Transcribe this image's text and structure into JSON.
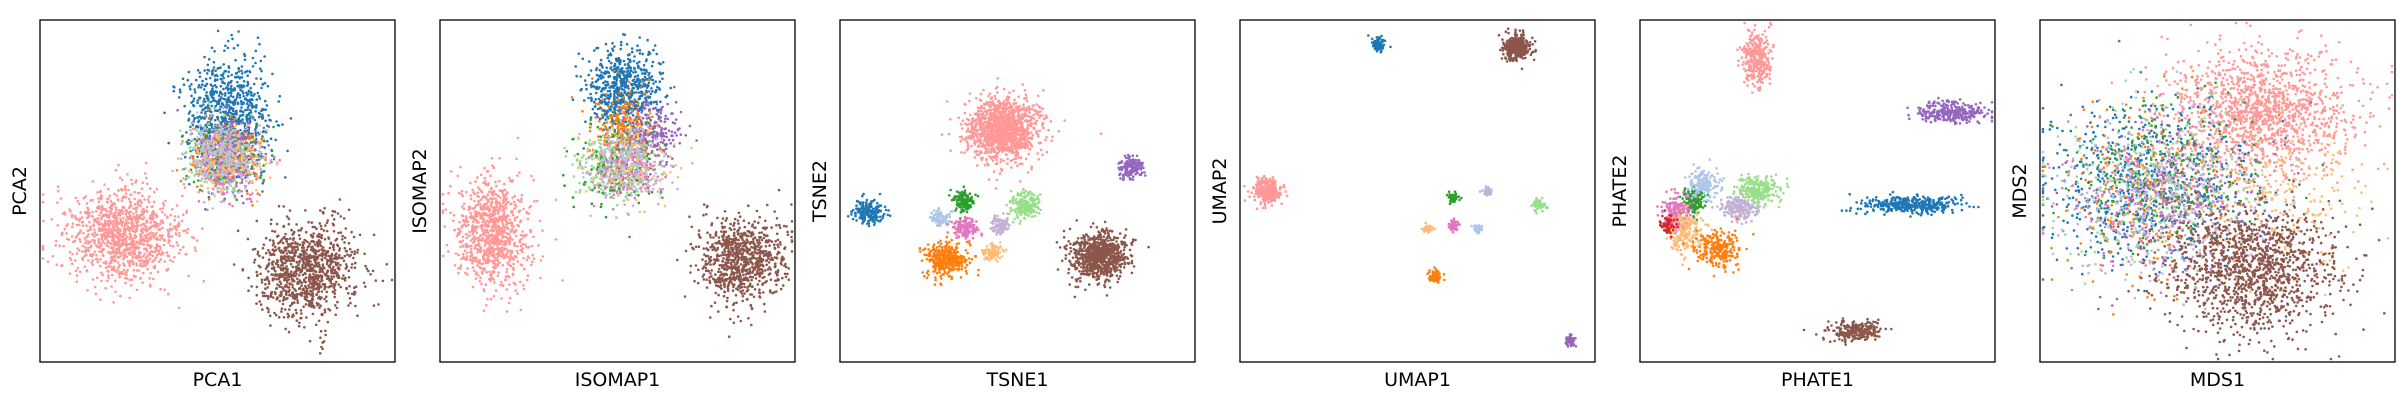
{
  "colors": {
    "blue": "#1f77b4",
    "orange": "#ff7f0e",
    "green": "#2ca02c",
    "light_green": "#98df8a",
    "purple": "#9467bd",
    "light_purple": "#c5b0d5",
    "brown": "#8c564b",
    "pink": "#e377c2",
    "light_pink": "#ff9896",
    "light_orange": "#ffbb78",
    "light_blue": "#aec7e8",
    "red": "#d62728"
  },
  "chart_data": [
    {
      "type": "scatter",
      "xlabel": "PCA1",
      "ylabel": "PCA2",
      "xlim": [
        0,
        100
      ],
      "ylim": [
        0,
        100
      ],
      "clusters": [
        {
          "color": "light_pink",
          "cx": 23,
          "cy": 37,
          "sx": 8,
          "sy": 7,
          "n": 1100
        },
        {
          "color": "brown",
          "cx": 75,
          "cy": 27,
          "sx": 7,
          "sy": 7,
          "n": 1000
        },
        {
          "color": "blue",
          "cx": 53,
          "cy": 72,
          "sx": 6,
          "sy": 8,
          "n": 800
        },
        {
          "color": "orange",
          "cx": 52,
          "cy": 60,
          "sx": 5,
          "sy": 5,
          "n": 260
        },
        {
          "color": "green",
          "cx": 53,
          "cy": 60,
          "sx": 5,
          "sy": 5,
          "n": 180
        },
        {
          "color": "light_green",
          "cx": 50,
          "cy": 60,
          "sx": 5,
          "sy": 5,
          "n": 180
        },
        {
          "color": "purple",
          "cx": 55,
          "cy": 62,
          "sx": 5,
          "sy": 5,
          "n": 160
        },
        {
          "color": "light_purple",
          "cx": 51,
          "cy": 58,
          "sx": 5,
          "sy": 5,
          "n": 160
        },
        {
          "color": "pink",
          "cx": 52,
          "cy": 57,
          "sx": 5,
          "sy": 5,
          "n": 130
        },
        {
          "color": "light_orange",
          "cx": 54,
          "cy": 59,
          "sx": 5,
          "sy": 5,
          "n": 130
        },
        {
          "color": "light_blue",
          "cx": 51,
          "cy": 61,
          "sx": 5,
          "sy": 5,
          "n": 130
        }
      ]
    },
    {
      "type": "scatter",
      "xlabel": "ISOMAP1",
      "ylabel": "ISOMAP2",
      "xlim": [
        0,
        100
      ],
      "ylim": [
        0,
        100
      ],
      "clusters": [
        {
          "color": "light_pink",
          "cx": 15,
          "cy": 38,
          "sx": 5,
          "sy": 8,
          "n": 900
        },
        {
          "color": "brown",
          "cx": 85,
          "cy": 30,
          "sx": 6,
          "sy": 6,
          "n": 850
        },
        {
          "color": "blue",
          "cx": 52,
          "cy": 80,
          "sx": 5,
          "sy": 6,
          "n": 650
        },
        {
          "color": "orange",
          "cx": 52,
          "cy": 68,
          "sx": 4,
          "sy": 5,
          "n": 280
        },
        {
          "color": "purple",
          "cx": 60,
          "cy": 67,
          "sx": 4,
          "sy": 5,
          "n": 220
        },
        {
          "color": "light_green",
          "cx": 48,
          "cy": 57,
          "sx": 5,
          "sy": 5,
          "n": 260
        },
        {
          "color": "green",
          "cx": 50,
          "cy": 58,
          "sx": 6,
          "sy": 6,
          "n": 160
        },
        {
          "color": "light_purple",
          "cx": 55,
          "cy": 56,
          "sx": 5,
          "sy": 5,
          "n": 160
        },
        {
          "color": "pink",
          "cx": 52,
          "cy": 56,
          "sx": 5,
          "sy": 5,
          "n": 120
        },
        {
          "color": "light_orange",
          "cx": 54,
          "cy": 58,
          "sx": 6,
          "sy": 6,
          "n": 120
        },
        {
          "color": "light_blue",
          "cx": 51,
          "cy": 60,
          "sx": 5,
          "sy": 5,
          "n": 120
        }
      ]
    },
    {
      "type": "scatter",
      "xlabel": "TSNE1",
      "ylabel": "TSNE2",
      "xlim": [
        0,
        100
      ],
      "ylim": [
        0,
        100
      ],
      "clusters": [
        {
          "color": "light_pink",
          "cx": 46,
          "cy": 68,
          "sx": 5,
          "sy": 4.5,
          "n": 1300
        },
        {
          "color": "purple",
          "cx": 82,
          "cy": 57,
          "sx": 1.8,
          "sy": 1.6,
          "n": 150
        },
        {
          "color": "blue",
          "cx": 8,
          "cy": 44,
          "sx": 2,
          "sy": 1.8,
          "n": 180
        },
        {
          "color": "green",
          "cx": 35,
          "cy": 47,
          "sx": 1.6,
          "sy": 1.4,
          "n": 150
        },
        {
          "color": "light_green",
          "cx": 52,
          "cy": 46,
          "sx": 2.2,
          "sy": 2,
          "n": 200
        },
        {
          "color": "light_blue",
          "cx": 28,
          "cy": 42,
          "sx": 1.4,
          "sy": 1.2,
          "n": 90
        },
        {
          "color": "pink",
          "cx": 35,
          "cy": 39,
          "sx": 1.8,
          "sy": 1.5,
          "n": 150
        },
        {
          "color": "light_purple",
          "cx": 45,
          "cy": 40,
          "sx": 1.5,
          "sy": 1.3,
          "n": 110
        },
        {
          "color": "light_orange",
          "cx": 43,
          "cy": 32,
          "sx": 1.3,
          "sy": 1.2,
          "n": 90
        },
        {
          "color": "orange",
          "cx": 30,
          "cy": 30,
          "sx": 3,
          "sy": 2.5,
          "n": 380
        },
        {
          "color": "brown",
          "cx": 73,
          "cy": 31,
          "sx": 4,
          "sy": 3.5,
          "n": 800
        }
      ]
    },
    {
      "type": "scatter",
      "xlabel": "UMAP1",
      "ylabel": "UMAP2",
      "xlim": [
        0,
        100
      ],
      "ylim": [
        0,
        100
      ],
      "clusters": [
        {
          "color": "blue",
          "cx": 39,
          "cy": 93,
          "sx": 0.9,
          "sy": 0.9,
          "n": 90
        },
        {
          "color": "brown",
          "cx": 78,
          "cy": 92,
          "sx": 1.8,
          "sy": 1.8,
          "n": 350
        },
        {
          "color": "light_pink",
          "cx": 8,
          "cy": 50,
          "sx": 1.8,
          "sy": 1.8,
          "n": 320
        },
        {
          "color": "green",
          "cx": 60,
          "cy": 48,
          "sx": 0.7,
          "sy": 0.7,
          "n": 60
        },
        {
          "color": "light_purple",
          "cx": 70,
          "cy": 50,
          "sx": 0.6,
          "sy": 0.6,
          "n": 40
        },
        {
          "color": "light_green",
          "cx": 84,
          "cy": 46,
          "sx": 0.9,
          "sy": 0.8,
          "n": 70
        },
        {
          "color": "pink",
          "cx": 60,
          "cy": 40,
          "sx": 0.8,
          "sy": 0.8,
          "n": 60
        },
        {
          "color": "light_orange",
          "cx": 53,
          "cy": 39,
          "sx": 0.7,
          "sy": 0.6,
          "n": 50
        },
        {
          "color": "light_blue",
          "cx": 67,
          "cy": 39,
          "sx": 0.6,
          "sy": 0.6,
          "n": 40
        },
        {
          "color": "orange",
          "cx": 55,
          "cy": 25,
          "sx": 0.9,
          "sy": 0.9,
          "n": 90
        },
        {
          "color": "purple",
          "cx": 93,
          "cy": 6,
          "sx": 0.8,
          "sy": 0.8,
          "n": 60
        }
      ]
    },
    {
      "type": "scatter",
      "xlabel": "PHATE1",
      "ylabel": "PHATE2",
      "xlim": [
        0,
        100
      ],
      "ylim": [
        0,
        100
      ],
      "clusters": [
        {
          "color": "light_pink",
          "cx": 33,
          "cy": 89,
          "sx": 2,
          "sy": 4,
          "n": 300
        },
        {
          "color": "purple",
          "cx": 88,
          "cy": 73,
          "sx": 5,
          "sy": 1.5,
          "n": 300
        },
        {
          "color": "blue",
          "cx": 76,
          "cy": 46,
          "sx": 7,
          "sy": 1.2,
          "n": 350
        },
        {
          "color": "brown",
          "cx": 61,
          "cy": 9,
          "sx": 4,
          "sy": 1.5,
          "n": 250
        },
        {
          "color": "light_green",
          "cx": 33,
          "cy": 50,
          "sx": 3,
          "sy": 2.2,
          "n": 250
        },
        {
          "color": "light_purple",
          "cx": 28,
          "cy": 45,
          "sx": 2.5,
          "sy": 1.8,
          "n": 200
        },
        {
          "color": "green",
          "cx": 15,
          "cy": 47,
          "sx": 1.5,
          "sy": 2,
          "n": 180
        },
        {
          "color": "pink",
          "cx": 10,
          "cy": 44,
          "sx": 2,
          "sy": 2.5,
          "n": 200
        },
        {
          "color": "light_blue",
          "cx": 18,
          "cy": 52,
          "sx": 2,
          "sy": 2,
          "n": 160
        },
        {
          "color": "light_orange",
          "cx": 13,
          "cy": 38,
          "sx": 2.5,
          "sy": 3,
          "n": 200
        },
        {
          "color": "orange",
          "cx": 22,
          "cy": 33,
          "sx": 3,
          "sy": 2.5,
          "n": 250
        },
        {
          "color": "red",
          "cx": 8,
          "cy": 40,
          "sx": 1.2,
          "sy": 1.5,
          "n": 60
        }
      ]
    },
    {
      "type": "scatter",
      "xlabel": "MDS1",
      "ylabel": "MDS2",
      "xlim": [
        0,
        100
      ],
      "ylim": [
        0,
        100
      ],
      "clusters": [
        {
          "color": "light_pink",
          "cx": 62,
          "cy": 73,
          "sx": 13,
          "sy": 9,
          "n": 1400
        },
        {
          "color": "blue",
          "cx": 30,
          "cy": 52,
          "sx": 14,
          "sy": 12,
          "n": 700
        },
        {
          "color": "green",
          "cx": 35,
          "cy": 55,
          "sx": 14,
          "sy": 12,
          "n": 250
        },
        {
          "color": "light_green",
          "cx": 33,
          "cy": 50,
          "sx": 14,
          "sy": 12,
          "n": 250
        },
        {
          "color": "orange",
          "cx": 30,
          "cy": 48,
          "sx": 12,
          "sy": 12,
          "n": 250
        },
        {
          "color": "purple",
          "cx": 40,
          "cy": 45,
          "sx": 14,
          "sy": 12,
          "n": 220
        },
        {
          "color": "light_purple",
          "cx": 35,
          "cy": 45,
          "sx": 13,
          "sy": 12,
          "n": 220
        },
        {
          "color": "pink",
          "cx": 30,
          "cy": 48,
          "sx": 13,
          "sy": 12,
          "n": 180
        },
        {
          "color": "light_orange",
          "cx": 70,
          "cy": 48,
          "sx": 12,
          "sy": 10,
          "n": 220
        },
        {
          "color": "light_blue",
          "cx": 32,
          "cy": 52,
          "sx": 13,
          "sy": 12,
          "n": 180
        },
        {
          "color": "brown",
          "cx": 60,
          "cy": 27,
          "sx": 12,
          "sy": 9,
          "n": 1300
        }
      ]
    }
  ]
}
